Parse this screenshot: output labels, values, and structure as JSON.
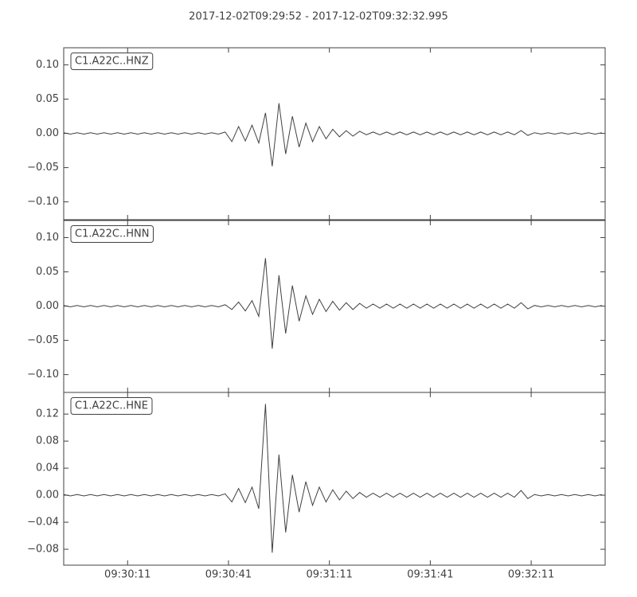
{
  "chart_data": [
    {
      "type": "line",
      "title": "2017-12-02T09:29:52  -  2017-12-02T09:32:32.995",
      "x": [
        0,
        2,
        4,
        6,
        8,
        10,
        12,
        14,
        16,
        18,
        20,
        22,
        24,
        26,
        28,
        30,
        32,
        34,
        36,
        38,
        40,
        42,
        44,
        46,
        48,
        50,
        52,
        54,
        56,
        58,
        60,
        62,
        64,
        66,
        68,
        70,
        72,
        74,
        76,
        78,
        80,
        82,
        84,
        86,
        88,
        90,
        92,
        94,
        96,
        98,
        100,
        102,
        104,
        106,
        108,
        110,
        112,
        114,
        116,
        118,
        120,
        122,
        124,
        126,
        128,
        130,
        132,
        134,
        136,
        138,
        140,
        142,
        144,
        146,
        148,
        150,
        152,
        154,
        156,
        158,
        160
      ],
      "series": [
        {
          "name": "C1.A22C..HNZ",
          "color": "#404040",
          "values": [
            0.001,
            -0.001,
            0.001,
            -0.001,
            0.001,
            -0.001,
            0.001,
            -0.001,
            0.001,
            -0.001,
            0.001,
            -0.001,
            0.001,
            -0.001,
            0.001,
            -0.001,
            0.001,
            -0.001,
            0.001,
            -0.001,
            0.001,
            -0.001,
            0.001,
            -0.001,
            0.002,
            -0.012,
            0.01,
            -0.011,
            0.012,
            -0.014,
            0.03,
            -0.048,
            0.044,
            -0.03,
            0.025,
            -0.02,
            0.015,
            -0.012,
            0.01,
            -0.008,
            0.006,
            -0.005,
            0.004,
            -0.004,
            0.003,
            -0.002,
            0.002,
            -0.002,
            0.002,
            -0.002,
            0.002,
            -0.002,
            0.002,
            -0.002,
            0.002,
            -0.002,
            0.002,
            -0.002,
            0.002,
            -0.002,
            0.002,
            -0.002,
            0.002,
            -0.002,
            0.002,
            -0.002,
            0.002,
            -0.002,
            0.004,
            -0.003,
            0.001,
            -0.001,
            0.001,
            -0.001,
            0.001,
            -0.001,
            0.001,
            -0.001,
            0.001,
            -0.001,
            0.001
          ]
        }
      ],
      "xlim": [
        0,
        160.995
      ],
      "ylim": [
        -0.126,
        0.125
      ],
      "yticks": [
        {
          "value": -0.1,
          "label": "−0.10"
        },
        {
          "value": -0.05,
          "label": "−0.05"
        },
        {
          "value": 0,
          "label": "0.00"
        },
        {
          "value": 0.05,
          "label": "0.05"
        },
        {
          "value": 0.1,
          "label": "0.10"
        }
      ]
    },
    {
      "type": "line",
      "x": [
        0,
        2,
        4,
        6,
        8,
        10,
        12,
        14,
        16,
        18,
        20,
        22,
        24,
        26,
        28,
        30,
        32,
        34,
        36,
        38,
        40,
        42,
        44,
        46,
        48,
        50,
        52,
        54,
        56,
        58,
        60,
        62,
        64,
        66,
        68,
        70,
        72,
        74,
        76,
        78,
        80,
        82,
        84,
        86,
        88,
        90,
        92,
        94,
        96,
        98,
        100,
        102,
        104,
        106,
        108,
        110,
        112,
        114,
        116,
        118,
        120,
        122,
        124,
        126,
        128,
        130,
        132,
        134,
        136,
        138,
        140,
        142,
        144,
        146,
        148,
        150,
        152,
        154,
        156,
        158,
        160
      ],
      "series": [
        {
          "name": "C1.A22C..HNN",
          "color": "#404040",
          "values": [
            0.001,
            -0.001,
            0.001,
            -0.001,
            0.001,
            -0.001,
            0.001,
            -0.001,
            0.001,
            -0.001,
            0.001,
            -0.001,
            0.001,
            -0.001,
            0.001,
            -0.001,
            0.001,
            -0.001,
            0.001,
            -0.001,
            0.001,
            -0.001,
            0.001,
            -0.001,
            0.002,
            -0.005,
            0.006,
            -0.007,
            0.008,
            -0.015,
            0.07,
            -0.062,
            0.045,
            -0.04,
            0.03,
            -0.022,
            0.015,
            -0.012,
            0.01,
            -0.008,
            0.007,
            -0.006,
            0.005,
            -0.005,
            0.004,
            -0.003,
            0.003,
            -0.003,
            0.003,
            -0.003,
            0.003,
            -0.003,
            0.003,
            -0.003,
            0.003,
            -0.003,
            0.003,
            -0.003,
            0.003,
            -0.003,
            0.003,
            -0.003,
            0.003,
            -0.003,
            0.003,
            -0.003,
            0.003,
            -0.003,
            0.005,
            -0.004,
            0.001,
            -0.001,
            0.001,
            -0.001,
            0.001,
            -0.001,
            0.001,
            -0.001,
            0.001,
            -0.001,
            0.001
          ]
        }
      ],
      "xlim": [
        0,
        160.995
      ],
      "ylim": [
        -0.126,
        0.125
      ],
      "yticks": [
        {
          "value": -0.1,
          "label": "−0.10"
        },
        {
          "value": -0.05,
          "label": "−0.05"
        },
        {
          "value": 0,
          "label": "0.00"
        },
        {
          "value": 0.05,
          "label": "0.05"
        },
        {
          "value": 0.1,
          "label": "0.10"
        }
      ]
    },
    {
      "type": "line",
      "x": [
        0,
        2,
        4,
        6,
        8,
        10,
        12,
        14,
        16,
        18,
        20,
        22,
        24,
        26,
        28,
        30,
        32,
        34,
        36,
        38,
        40,
        42,
        44,
        46,
        48,
        50,
        52,
        54,
        56,
        58,
        60,
        62,
        64,
        66,
        68,
        70,
        72,
        74,
        76,
        78,
        80,
        82,
        84,
        86,
        88,
        90,
        92,
        94,
        96,
        98,
        100,
        102,
        104,
        106,
        108,
        110,
        112,
        114,
        116,
        118,
        120,
        122,
        124,
        126,
        128,
        130,
        132,
        134,
        136,
        138,
        140,
        142,
        144,
        146,
        148,
        150,
        152,
        154,
        156,
        158,
        160
      ],
      "series": [
        {
          "name": "C1.A22C..HNE",
          "color": "#404040",
          "values": [
            0.001,
            -0.001,
            0.001,
            -0.001,
            0.001,
            -0.001,
            0.001,
            -0.001,
            0.001,
            -0.001,
            0.001,
            -0.001,
            0.001,
            -0.001,
            0.001,
            -0.001,
            0.001,
            -0.001,
            0.001,
            -0.001,
            0.001,
            -0.001,
            0.001,
            -0.001,
            0.002,
            -0.01,
            0.01,
            -0.011,
            0.012,
            -0.02,
            0.135,
            -0.085,
            0.06,
            -0.055,
            0.03,
            -0.025,
            0.02,
            -0.015,
            0.012,
            -0.01,
            0.008,
            -0.007,
            0.006,
            -0.005,
            0.004,
            -0.003,
            0.003,
            -0.003,
            0.003,
            -0.003,
            0.003,
            -0.003,
            0.003,
            -0.003,
            0.003,
            -0.003,
            0.003,
            -0.003,
            0.003,
            -0.003,
            0.003,
            -0.003,
            0.003,
            -0.003,
            0.003,
            -0.003,
            0.003,
            -0.003,
            0.007,
            -0.005,
            0.001,
            -0.001,
            0.001,
            -0.001,
            0.001,
            -0.001,
            0.001,
            -0.001,
            0.001,
            -0.001,
            0.001
          ]
        }
      ],
      "xlim": [
        0,
        160.995
      ],
      "ylim": [
        -0.1035,
        0.152
      ],
      "yticks": [
        {
          "value": -0.08,
          "label": "−0.08"
        },
        {
          "value": -0.04,
          "label": "−0.04"
        },
        {
          "value": 0,
          "label": "0.00"
        },
        {
          "value": 0.04,
          "label": "0.04"
        },
        {
          "value": 0.08,
          "label": "0.08"
        },
        {
          "value": 0.12,
          "label": "0.12"
        }
      ],
      "xticks": [
        {
          "value": 19,
          "label": "09:30:11"
        },
        {
          "value": 49,
          "label": "09:30:41"
        },
        {
          "value": 79,
          "label": "09:31:11"
        },
        {
          "value": 109,
          "label": "09:31:41"
        },
        {
          "value": 139,
          "label": "09:32:11"
        }
      ]
    }
  ]
}
